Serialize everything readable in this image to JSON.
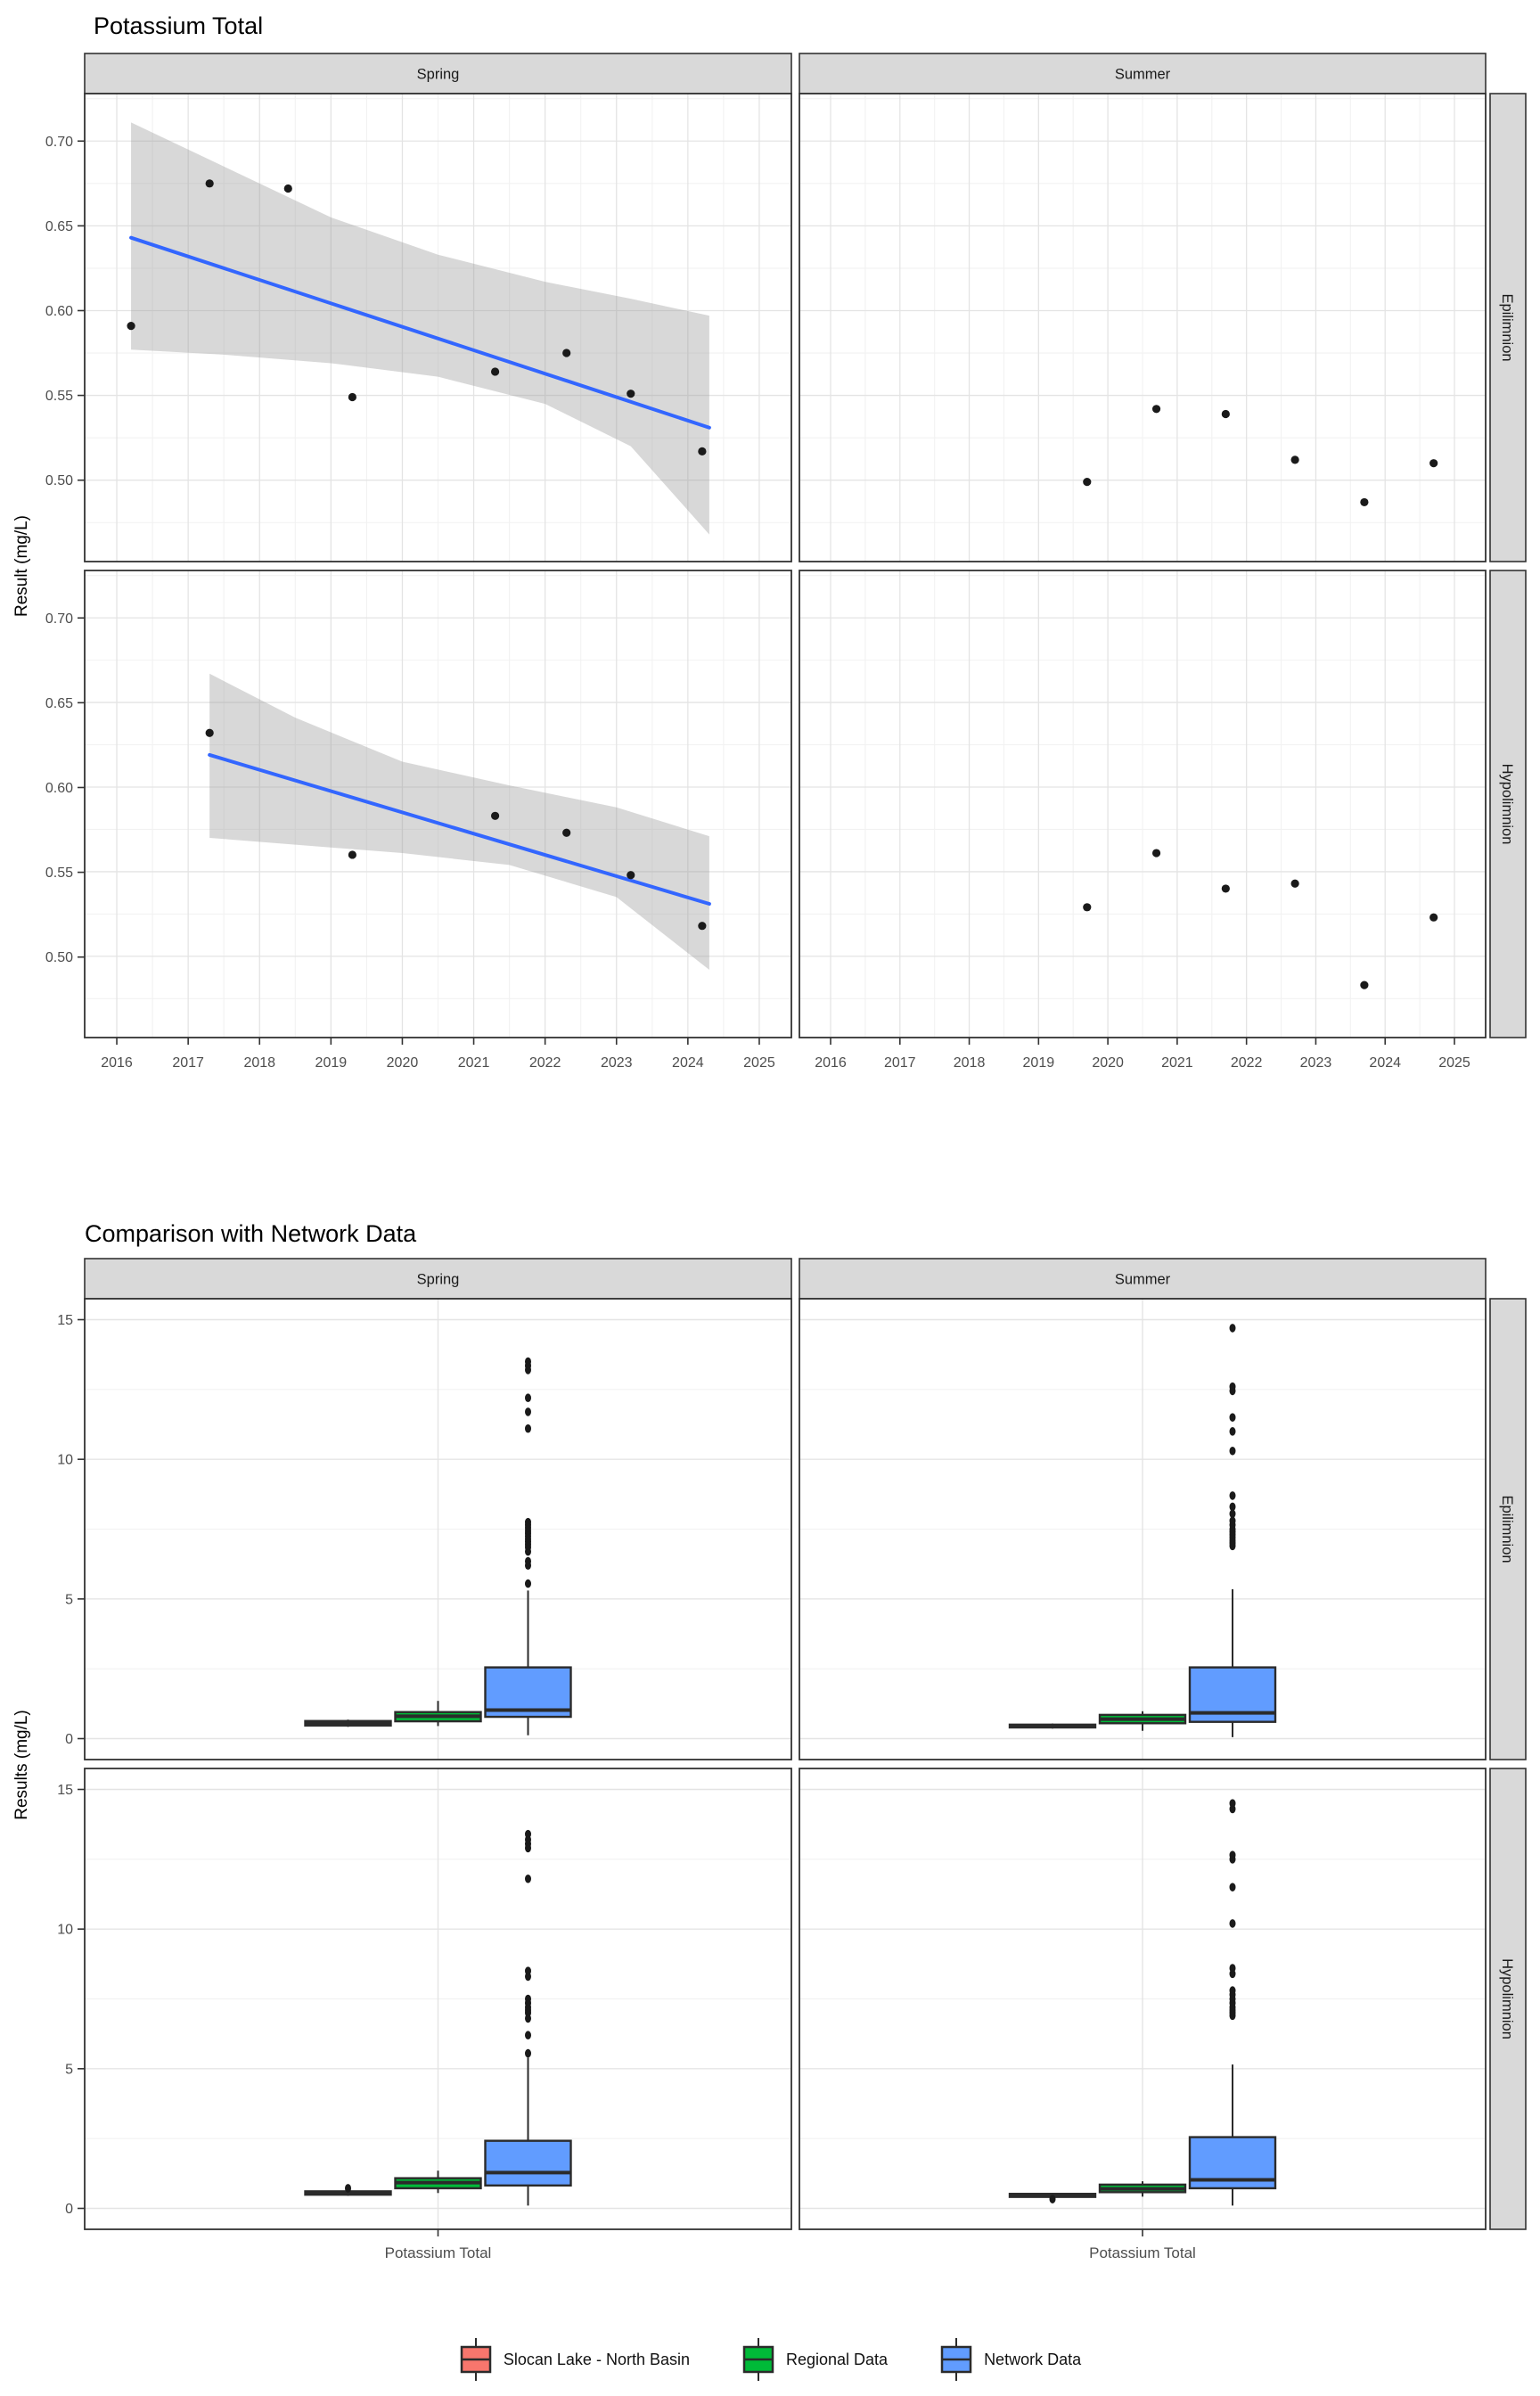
{
  "legend": {
    "items": [
      {
        "label": "Slocan Lake - North Basin",
        "color": "#F8766D"
      },
      {
        "label": "Regional Data",
        "color": "#00BA38"
      },
      {
        "label": "Network Data",
        "color": "#619CFF"
      }
    ]
  },
  "style_colors": {
    "trend_blue": "#3366FF",
    "band_gray": "#999999",
    "point_black": "#1A1A1A",
    "strip_fill": "#D9D9D9",
    "panel_border": "#333333",
    "grid_major": "#E4E4E4",
    "grid_minor": "#F2F2F2",
    "tick_label": "#4D4D4D",
    "box_stroke": "#2B2B2B"
  },
  "chart_data": [
    {
      "type": "scatter",
      "title": "Potassium Total",
      "ylabel": "Result (mg/L)",
      "col_facets": [
        "Spring",
        "Summer"
      ],
      "row_facets": [
        "Epilimnion",
        "Hypolimnion"
      ],
      "x_ticks": [
        "2016",
        "2017",
        "2018",
        "2019",
        "2020",
        "2021",
        "2022",
        "2023",
        "2024",
        "2025"
      ],
      "y_ticks": [
        "0.50",
        "0.55",
        "0.60",
        "0.65",
        "0.70"
      ],
      "x_domain": [
        2015.55,
        2025.45
      ],
      "y_domain": [
        0.452,
        0.728
      ],
      "grid": true,
      "panels": [
        {
          "row": "Epilimnion",
          "col": "Spring",
          "points": [
            [
              2016.2,
              0.591
            ],
            [
              2017.3,
              0.675
            ],
            [
              2018.4,
              0.672
            ],
            [
              2019.3,
              0.549
            ],
            [
              2021.3,
              0.564
            ],
            [
              2022.3,
              0.575
            ],
            [
              2023.2,
              0.551
            ],
            [
              2024.2,
              0.517
            ]
          ],
          "trend": [
            [
              2016.2,
              0.643
            ],
            [
              2024.3,
              0.531
            ]
          ],
          "band": {
            "x": [
              2016.2,
              2017.5,
              2019.0,
              2020.5,
              2022.0,
              2023.2,
              2024.3
            ],
            "upper": [
              0.711,
              0.685,
              0.655,
              0.633,
              0.617,
              0.607,
              0.597
            ],
            "lower": [
              0.577,
              0.574,
              0.569,
              0.561,
              0.545,
              0.52,
              0.468
            ]
          }
        },
        {
          "row": "Epilimnion",
          "col": "Summer",
          "points": [
            [
              2019.7,
              0.499
            ],
            [
              2020.7,
              0.542
            ],
            [
              2021.7,
              0.539
            ],
            [
              2022.7,
              0.512
            ],
            [
              2023.7,
              0.487
            ],
            [
              2024.7,
              0.51
            ]
          ]
        },
        {
          "row": "Hypolimnion",
          "col": "Spring",
          "points": [
            [
              2017.3,
              0.632
            ],
            [
              2019.3,
              0.56
            ],
            [
              2021.3,
              0.583
            ],
            [
              2022.3,
              0.573
            ],
            [
              2023.2,
              0.548
            ],
            [
              2024.2,
              0.518
            ]
          ],
          "trend": [
            [
              2017.3,
              0.619
            ],
            [
              2024.3,
              0.531
            ]
          ],
          "band": {
            "x": [
              2017.3,
              2018.5,
              2020.0,
              2021.5,
              2023.0,
              2024.3
            ],
            "upper": [
              0.667,
              0.641,
              0.615,
              0.601,
              0.588,
              0.571
            ],
            "lower": [
              0.57,
              0.566,
              0.561,
              0.554,
              0.535,
              0.492
            ]
          }
        },
        {
          "row": "Hypolimnion",
          "col": "Summer",
          "points": [
            [
              2019.7,
              0.529
            ],
            [
              2020.7,
              0.561
            ],
            [
              2021.7,
              0.54
            ],
            [
              2022.7,
              0.543
            ],
            [
              2023.7,
              0.483
            ],
            [
              2024.7,
              0.523
            ]
          ]
        }
      ]
    },
    {
      "type": "boxplot",
      "title": "Comparison with Network Data",
      "ylabel": "Results (mg/L)",
      "xlabel": "Potassium Total",
      "col_facets": [
        "Spring",
        "Summer"
      ],
      "row_facets": [
        "Epilimnion",
        "Hypolimnion"
      ],
      "y_ticks": [
        "0",
        "5",
        "10",
        "15"
      ],
      "y_domain": [
        -0.75,
        15.75
      ],
      "series": [
        "Slocan Lake - North Basin",
        "Regional Data",
        "Network Data"
      ],
      "series_colors": [
        "#F8766D",
        "#00BA38",
        "#619CFF"
      ],
      "panels": [
        {
          "row": "Epilimnion",
          "col": "Spring",
          "boxes": [
            {
              "group": "Slocan Lake - North Basin",
              "low": 0.42,
              "q1": 0.47,
              "median": 0.56,
              "q3": 0.63,
              "high": 0.68,
              "outliers": []
            },
            {
              "group": "Regional Data",
              "low": 0.45,
              "q1": 0.62,
              "median": 0.8,
              "q3": 0.95,
              "high": 1.35,
              "outliers": []
            },
            {
              "group": "Network Data",
              "low": 0.12,
              "q1": 0.78,
              "median": 1.02,
              "q3": 2.55,
              "high": 5.3,
              "outliers": [
                5.55,
                6.2,
                6.35,
                6.7,
                6.85,
                6.95,
                7.05,
                7.15,
                7.25,
                7.35,
                7.45,
                7.55,
                7.65,
                7.75,
                11.1,
                11.7,
                12.2,
                13.2,
                13.35,
                13.5
              ]
            }
          ]
        },
        {
          "row": "Epilimnion",
          "col": "Summer",
          "boxes": [
            {
              "group": "Slocan Lake - North Basin",
              "low": 0.36,
              "q1": 0.4,
              "median": 0.45,
              "q3": 0.5,
              "high": 0.54,
              "outliers": []
            },
            {
              "group": "Regional Data",
              "low": 0.28,
              "q1": 0.55,
              "median": 0.7,
              "q3": 0.85,
              "high": 0.98,
              "outliers": []
            },
            {
              "group": "Network Data",
              "low": 0.05,
              "q1": 0.6,
              "median": 0.92,
              "q3": 2.55,
              "high": 5.35,
              "outliers": [
                6.9,
                7.0,
                7.1,
                7.2,
                7.3,
                7.4,
                7.5,
                7.65,
                7.8,
                8.05,
                8.3,
                8.7,
                10.3,
                11.0,
                11.5,
                12.45,
                12.6,
                14.7
              ]
            }
          ]
        },
        {
          "row": "Hypolimnion",
          "col": "Spring",
          "boxes": [
            {
              "group": "Slocan Lake - North Basin",
              "low": 0.45,
              "q1": 0.49,
              "median": 0.55,
              "q3": 0.61,
              "high": 0.65,
              "outliers": [
                0.72
              ]
            },
            {
              "group": "Regional Data",
              "low": 0.55,
              "q1": 0.72,
              "median": 0.92,
              "q3": 1.08,
              "high": 1.35,
              "outliers": []
            },
            {
              "group": "Network Data",
              "low": 0.1,
              "q1": 0.82,
              "median": 1.28,
              "q3": 2.42,
              "high": 5.4,
              "outliers": [
                5.55,
                6.2,
                6.8,
                7.0,
                7.1,
                7.2,
                7.35,
                7.5,
                8.3,
                8.5,
                11.8,
                12.9,
                13.05,
                13.2,
                13.4
              ]
            }
          ]
        },
        {
          "row": "Hypolimnion",
          "col": "Summer",
          "boxes": [
            {
              "group": "Slocan Lake - North Basin",
              "low": 0.36,
              "q1": 0.41,
              "median": 0.46,
              "q3": 0.52,
              "high": 0.55,
              "outliers": [
                0.33
              ]
            },
            {
              "group": "Regional Data",
              "low": 0.42,
              "q1": 0.58,
              "median": 0.7,
              "q3": 0.85,
              "high": 0.97,
              "outliers": []
            },
            {
              "group": "Network Data",
              "low": 0.1,
              "q1": 0.72,
              "median": 1.02,
              "q3": 2.55,
              "high": 5.15,
              "outliers": [
                6.9,
                7.0,
                7.1,
                7.2,
                7.35,
                7.5,
                7.65,
                7.8,
                8.4,
                8.6,
                10.2,
                11.5,
                12.5,
                12.65,
                14.3,
                14.5
              ]
            }
          ]
        }
      ]
    }
  ]
}
